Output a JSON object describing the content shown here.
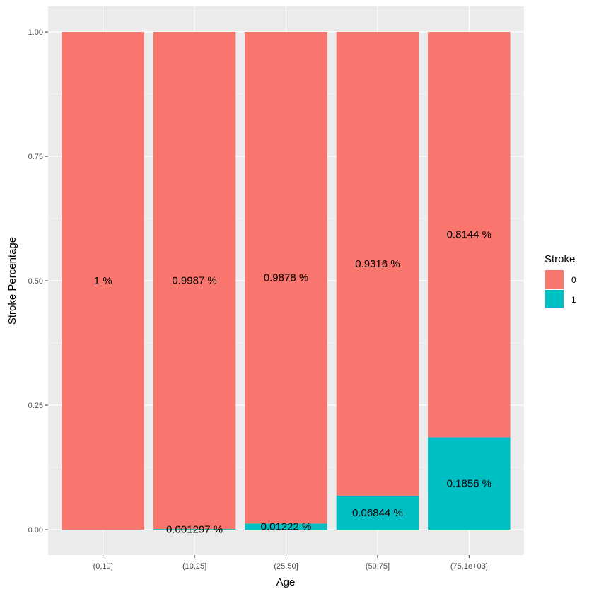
{
  "chart_data": {
    "type": "bar",
    "stacked": true,
    "xlabel": "Age",
    "ylabel": "Stroke Percentage",
    "ylim": [
      0,
      1
    ],
    "yticks": [
      "0.00",
      "0.25",
      "0.50",
      "0.75",
      "1.00"
    ],
    "ytick_values": [
      0,
      0.25,
      0.5,
      0.75,
      1
    ],
    "categories": [
      "(0,10]",
      "(10,25]",
      "(25,50]",
      "(50,75]",
      "(75,1e+03]"
    ],
    "legend": {
      "title": "Stroke",
      "placement": "right"
    },
    "series": [
      {
        "name": "0",
        "color": "#F8766D",
        "values": [
          1,
          0.9987,
          0.9878,
          0.9316,
          0.8144
        ],
        "labels": [
          "1 %",
          "0.9987 %",
          "0.9878 %",
          "0.9316 %",
          "0.8144 %"
        ]
      },
      {
        "name": "1",
        "color": "#00BFC4",
        "values": [
          0,
          0.001297,
          0.01222,
          0.06844,
          0.1856
        ],
        "labels": [
          "",
          "0.001297 %",
          "0.01222 %",
          "0.06844 %",
          "0.1856 %"
        ]
      }
    ],
    "grid": true,
    "panel_background": "#EBEBEB",
    "grid_color": "#FFFFFF"
  }
}
